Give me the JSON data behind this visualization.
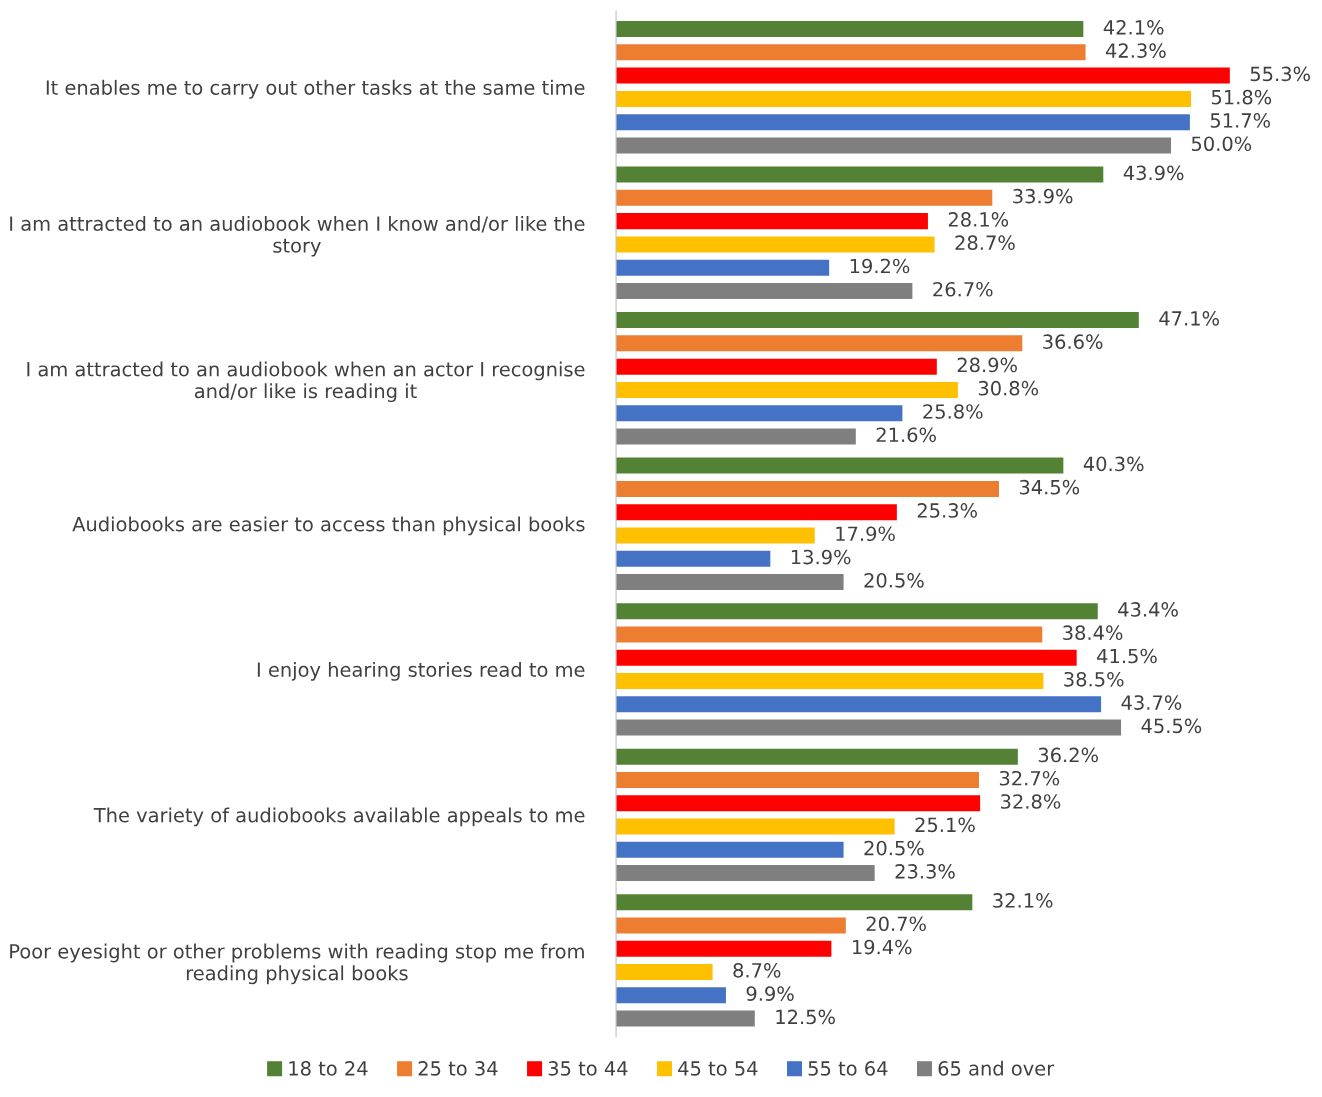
{
  "chart_data": {
    "type": "bar",
    "orientation": "horizontal",
    "categories": [
      "It enables me to carry out other tasks at the same time",
      "I am attracted to an audiobook when I know and/or like the\nstory",
      "I am attracted to an audiobook when an actor I recognise\nand/or like is reading it",
      "Audiobooks are easier to access than physical books",
      "I enjoy hearing stories read to me",
      "The variety of audiobooks available appeals to me",
      "Poor eyesight or other problems with reading stop me from\nreading physical books"
    ],
    "series": [
      {
        "name": "18 to 24",
        "color": "#548235",
        "values": [
          42.1,
          43.9,
          47.1,
          40.3,
          43.4,
          36.2,
          32.1
        ],
        "value_labels": [
          "42.1%",
          "43.9%",
          "47.1%",
          "40.3%",
          "43.4%",
          "36.2%",
          "32.1%"
        ]
      },
      {
        "name": "25 to 34",
        "color": "#ed7d31",
        "values": [
          42.3,
          33.9,
          36.6,
          34.5,
          38.4,
          32.7,
          20.7
        ],
        "value_labels": [
          "42.3%",
          "33.9%",
          "36.6%",
          "34.5%",
          "38.4%",
          "32.7%",
          "20.7%"
        ]
      },
      {
        "name": "35 to 44",
        "color": "#ff0000",
        "values": [
          55.3,
          28.1,
          28.9,
          25.3,
          41.5,
          32.8,
          19.4
        ],
        "value_labels": [
          "55.3%",
          "28.1%",
          "28.9%",
          "25.3%",
          "41.5%",
          "32.8%",
          "19.4%"
        ]
      },
      {
        "name": "45 to 54",
        "color": "#ffc000",
        "values": [
          51.8,
          28.7,
          30.8,
          17.9,
          38.5,
          25.1,
          8.7
        ],
        "value_labels": [
          "51.8%",
          "28.7%",
          "30.8%",
          "17.9%",
          "38.5%",
          "25.1%",
          "8.7%"
        ]
      },
      {
        "name": "55 to 64",
        "color": "#4472c4",
        "values": [
          51.7,
          19.2,
          25.8,
          13.9,
          43.7,
          20.5,
          9.9
        ],
        "value_labels": [
          "51.7%",
          "19.2%",
          "25.8%",
          "13.9%",
          "43.7%",
          "20.5%",
          "9.9%"
        ]
      },
      {
        "name": "65 and over",
        "color": "#7f7f7f",
        "values": [
          50.0,
          26.7,
          21.6,
          20.5,
          45.5,
          23.3,
          12.5
        ],
        "value_labels": [
          "50.0%",
          "26.7%",
          "21.6%",
          "20.5%",
          "45.5%",
          "23.3%",
          "12.5%"
        ]
      }
    ],
    "legend": "bottom",
    "tick_labels": "y"
  }
}
